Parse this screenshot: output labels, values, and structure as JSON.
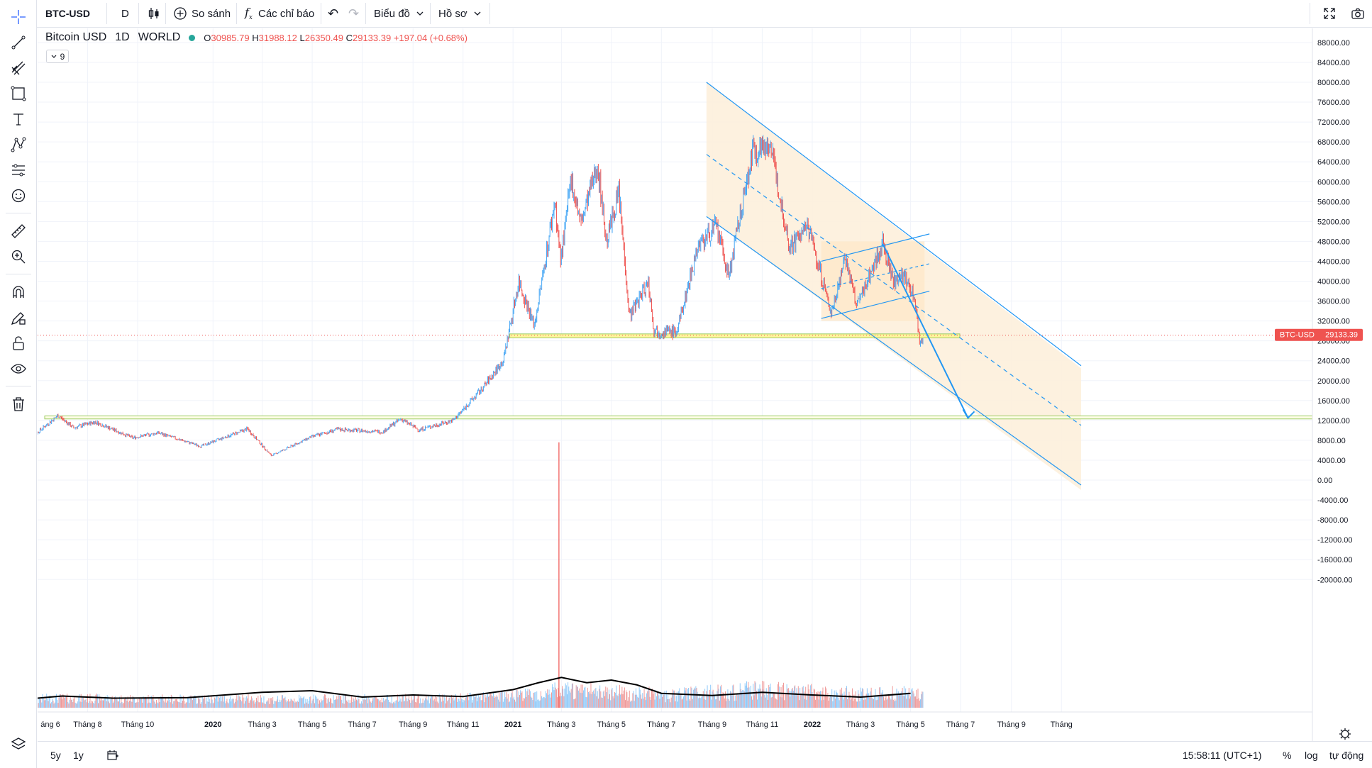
{
  "toolbar": {
    "symbol": "BTC-USD",
    "interval": "D",
    "compare_label": "So sánh",
    "indicators_label": "Các chỉ báo",
    "chart_menu_label": "Biểu đồ",
    "profile_menu_label": "Hồ sơ"
  },
  "legend": {
    "name": "Bitcoin USD",
    "interval": "1D",
    "exchange": "WORLD",
    "open_label": "O",
    "open": "30985.79",
    "high_label": "H",
    "high": "31988.12",
    "low_label": "L",
    "low": "26350.49",
    "close_label": "C",
    "close": "29133.39",
    "change": "+197.04 (+0.68%)",
    "indicator_count": "9"
  },
  "price_badge": {
    "symbol": "BTC-USD",
    "value": "29133.39",
    "color": "#ef5350"
  },
  "bottombar": {
    "range_5y": "5y",
    "range_1y": "1y",
    "clock": "15:58:11 (UTC+1)",
    "percent": "%",
    "log": "log",
    "auto": "tự động"
  },
  "colors": {
    "up": "#42a5f5",
    "down": "#ef5350",
    "channel": "#2196f3",
    "zone_fill": "#fdf0dc",
    "level_yellow": "#fff59d",
    "level_green": "#9ccc65",
    "ma_line": "#000000"
  },
  "chart_data": {
    "type": "candlestick",
    "y_ticks": [
      88000,
      84000,
      80000,
      76000,
      72000,
      68000,
      64000,
      60000,
      56000,
      52000,
      48000,
      44000,
      40000,
      36000,
      32000,
      28000,
      24000,
      20000,
      16000,
      12000,
      8000,
      4000,
      0,
      -4000,
      -8000,
      -12000,
      -16000,
      -20000
    ],
    "x_ticks": [
      {
        "label": "áng 6",
        "date": "2019-06"
      },
      {
        "label": "Tháng 8",
        "date": "2019-08"
      },
      {
        "label": "Tháng 10",
        "date": "2019-10"
      },
      {
        "label": "2020",
        "date": "2020-01",
        "bold": true
      },
      {
        "label": "Tháng 3",
        "date": "2020-03"
      },
      {
        "label": "Tháng 5",
        "date": "2020-05"
      },
      {
        "label": "Tháng 7",
        "date": "2020-07"
      },
      {
        "label": "Tháng 9",
        "date": "2020-09"
      },
      {
        "label": "Tháng 11",
        "date": "2020-11"
      },
      {
        "label": "2021",
        "date": "2021-01",
        "bold": true
      },
      {
        "label": "Tháng 3",
        "date": "2021-03"
      },
      {
        "label": "Tháng 5",
        "date": "2021-05"
      },
      {
        "label": "Tháng 7",
        "date": "2021-07"
      },
      {
        "label": "Tháng 9",
        "date": "2021-09"
      },
      {
        "label": "Tháng 11",
        "date": "2021-11"
      },
      {
        "label": "2022",
        "date": "2022-01",
        "bold": true
      },
      {
        "label": "Tháng 3",
        "date": "2022-03"
      },
      {
        "label": "Tháng 5",
        "date": "2022-05"
      },
      {
        "label": "Tháng 7",
        "date": "2022-07"
      },
      {
        "label": "Tháng 9",
        "date": "2022-09"
      },
      {
        "label": "Tháng",
        "date": "2022-11"
      }
    ],
    "price_path": [
      [
        "2019-05-20",
        8000
      ],
      [
        "2019-06-26",
        13000
      ],
      [
        "2019-07-15",
        10500
      ],
      [
        "2019-08-10",
        11700
      ],
      [
        "2019-09-25",
        8500
      ],
      [
        "2019-10-26",
        9500
      ],
      [
        "2019-12-17",
        6800
      ],
      [
        "2020-02-12",
        10300
      ],
      [
        "2020-03-12",
        4900
      ],
      [
        "2020-04-30",
        8700
      ],
      [
        "2020-06-01",
        10200
      ],
      [
        "2020-07-26",
        9700
      ],
      [
        "2020-08-17",
        12300
      ],
      [
        "2020-09-08",
        10100
      ],
      [
        "2020-10-20",
        12000
      ],
      [
        "2020-11-25",
        18500
      ],
      [
        "2020-12-20",
        24000
      ],
      [
        "2021-01-08",
        40000
      ],
      [
        "2021-01-27",
        31000
      ],
      [
        "2021-02-21",
        56000
      ],
      [
        "2021-02-28",
        44000
      ],
      [
        "2021-03-13",
        60500
      ],
      [
        "2021-03-25",
        51500
      ],
      [
        "2021-04-14",
        63500
      ],
      [
        "2021-04-25",
        48000
      ],
      [
        "2021-05-10",
        58000
      ],
      [
        "2021-05-23",
        33000
      ],
      [
        "2021-06-15",
        40000
      ],
      [
        "2021-06-22",
        30000
      ],
      [
        "2021-07-20",
        29800
      ],
      [
        "2021-08-14",
        47000
      ],
      [
        "2021-09-06",
        51000
      ],
      [
        "2021-09-21",
        41000
      ],
      [
        "2021-10-20",
        66000
      ],
      [
        "2021-11-10",
        68000
      ],
      [
        "2021-12-04",
        47000
      ],
      [
        "2021-12-27",
        51000
      ],
      [
        "2022-01-24",
        33500
      ],
      [
        "2022-02-10",
        45000
      ],
      [
        "2022-02-24",
        35000
      ],
      [
        "2022-03-28",
        47500
      ],
      [
        "2022-04-11",
        39500
      ],
      [
        "2022-04-20",
        42000
      ],
      [
        "2022-05-01",
        38000
      ],
      [
        "2022-05-07",
        36000
      ],
      [
        "2022-05-12",
        27500
      ],
      [
        "2022-05-16",
        29133
      ]
    ],
    "volume_ma_path": [
      [
        "2019-06",
        1
      ],
      [
        "2019-07",
        1.4
      ],
      [
        "2019-09",
        1.0
      ],
      [
        "2019-12",
        1.1
      ],
      [
        "2020-03",
        2.1
      ],
      [
        "2020-05",
        2.4
      ],
      [
        "2020-07",
        1.2
      ],
      [
        "2020-09",
        1.6
      ],
      [
        "2020-11",
        1.3
      ],
      [
        "2021-01",
        2.6
      ],
      [
        "2021-02",
        3.9
      ],
      [
        "2021-03",
        4.9
      ],
      [
        "2021-04",
        3.9
      ],
      [
        "2021-05",
        4.4
      ],
      [
        "2021-06",
        3.5
      ],
      [
        "2021-07",
        1.9
      ],
      [
        "2021-09",
        1.5
      ],
      [
        "2021-11",
        2.1
      ],
      [
        "2022-01",
        1.6
      ],
      [
        "2022-03",
        1.2
      ],
      [
        "2022-05",
        1.9
      ]
    ],
    "levels": [
      29000,
      12700
    ],
    "current_price": 29133.39
  }
}
